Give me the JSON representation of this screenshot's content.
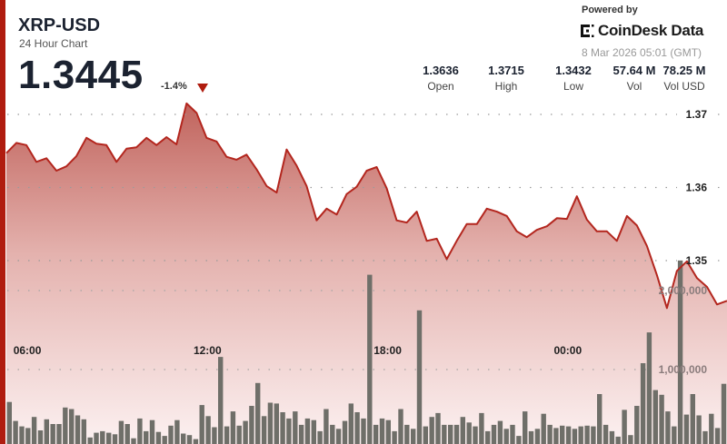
{
  "header": {
    "title": "XRP-USD",
    "subtitle": "24 Hour Chart",
    "price": "1.3445",
    "change": "-1.4%",
    "change_direction": "down",
    "powered_by": "Powered by",
    "brand": "CoinDesk Data",
    "timestamp": "8 Mar 2026 05:01 (GMT)"
  },
  "stats": [
    {
      "value": "1.3636",
      "label": "Open"
    },
    {
      "value": "1.3715",
      "label": "High"
    },
    {
      "value": "1.3432",
      "label": "Low"
    },
    {
      "value": "57.64 M",
      "label": "Vol"
    },
    {
      "value": "78.25 M",
      "label": "Vol USD"
    }
  ],
  "colors": {
    "accent": "#b01c0f",
    "line": "#b3261e",
    "volume_bar": "#6f6f69"
  },
  "chart_data": {
    "type": "area",
    "grid": true,
    "price_ticks": [
      1.37,
      1.36,
      1.35
    ],
    "price_tick_labels": [
      "1.37",
      "1.36",
      "1.35"
    ],
    "price_range": [
      1.3432,
      1.3715
    ],
    "volume_ticks": [
      2000000,
      1000000
    ],
    "volume_tick_labels": [
      "2,000,000",
      "1,000,000"
    ],
    "x_ticks": [
      "06:00",
      "12:00",
      "18:00",
      "00:00"
    ],
    "x_range": [
      "05:00",
      "05:00"
    ],
    "price_series": [
      [
        "05:00",
        1.3647
      ],
      [
        "05:20",
        1.3661
      ],
      [
        "05:40",
        1.3658
      ],
      [
        "06:00",
        1.3635
      ],
      [
        "06:20",
        1.364
      ],
      [
        "06:40",
        1.3623
      ],
      [
        "07:00",
        1.3629
      ],
      [
        "07:20",
        1.3643
      ],
      [
        "07:40",
        1.3668
      ],
      [
        "08:00",
        1.366
      ],
      [
        "08:20",
        1.3658
      ],
      [
        "08:40",
        1.3635
      ],
      [
        "09:00",
        1.3653
      ],
      [
        "09:20",
        1.3655
      ],
      [
        "09:40",
        1.3668
      ],
      [
        "10:00",
        1.3658
      ],
      [
        "10:20",
        1.3669
      ],
      [
        "10:40",
        1.3659
      ],
      [
        "11:00",
        1.3715
      ],
      [
        "11:20",
        1.3702
      ],
      [
        "11:40",
        1.3668
      ],
      [
        "12:00",
        1.3663
      ],
      [
        "12:20",
        1.3642
      ],
      [
        "12:40",
        1.3638
      ],
      [
        "13:00",
        1.3645
      ],
      [
        "13:20",
        1.3625
      ],
      [
        "13:40",
        1.3602
      ],
      [
        "14:00",
        1.3593
      ],
      [
        "14:20",
        1.3652
      ],
      [
        "14:40",
        1.363
      ],
      [
        "15:00",
        1.3602
      ],
      [
        "15:20",
        1.3555
      ],
      [
        "15:40",
        1.3571
      ],
      [
        "16:00",
        1.3563
      ],
      [
        "16:20",
        1.3591
      ],
      [
        "16:40",
        1.3601
      ],
      [
        "17:00",
        1.3623
      ],
      [
        "17:20",
        1.3628
      ],
      [
        "17:40",
        1.3599
      ],
      [
        "18:00",
        1.3555
      ],
      [
        "18:20",
        1.3552
      ],
      [
        "18:40",
        1.3567
      ],
      [
        "19:00",
        1.3527
      ],
      [
        "19:20",
        1.353
      ],
      [
        "19:40",
        1.3502
      ],
      [
        "20:00",
        1.3527
      ],
      [
        "20:20",
        1.355
      ],
      [
        "20:40",
        1.355
      ],
      [
        "21:00",
        1.3571
      ],
      [
        "21:20",
        1.3567
      ],
      [
        "21:40",
        1.3561
      ],
      [
        "22:00",
        1.354
      ],
      [
        "22:20",
        1.3532
      ],
      [
        "22:40",
        1.3542
      ],
      [
        "23:00",
        1.3547
      ],
      [
        "23:20",
        1.3558
      ],
      [
        "23:40",
        1.3557
      ],
      [
        "00:00",
        1.3588
      ],
      [
        "00:20",
        1.3556
      ],
      [
        "00:40",
        1.354
      ],
      [
        "01:00",
        1.354
      ],
      [
        "01:20",
        1.3527
      ],
      [
        "01:40",
        1.3561
      ],
      [
        "02:00",
        1.3548
      ],
      [
        "02:20",
        1.352
      ],
      [
        "02:40",
        1.348
      ],
      [
        "03:00",
        1.3435
      ],
      [
        "03:20",
        1.3486
      ],
      [
        "03:40",
        1.3499
      ],
      [
        "04:00",
        1.3476
      ],
      [
        "04:20",
        1.3464
      ],
      [
        "04:40",
        1.344
      ],
      [
        "05:00",
        1.3445
      ]
    ],
    "volume_series": [
      590000,
      350000,
      280000,
      260000,
      400000,
      230000,
      370000,
      310000,
      310000,
      520000,
      500000,
      420000,
      370000,
      140000,
      200000,
      220000,
      200000,
      180000,
      350000,
      310000,
      130000,
      380000,
      220000,
      360000,
      210000,
      160000,
      290000,
      360000,
      190000,
      170000,
      120000,
      550000,
      410000,
      270000,
      1160000,
      280000,
      470000,
      290000,
      350000,
      540000,
      830000,
      410000,
      580000,
      570000,
      460000,
      380000,
      470000,
      300000,
      380000,
      360000,
      220000,
      500000,
      300000,
      250000,
      350000,
      570000,
      460000,
      380000,
      2200000,
      300000,
      380000,
      360000,
      220000,
      500000,
      300000,
      250000,
      1750000,
      280000,
      400000,
      450000,
      300000,
      300000,
      300000,
      400000,
      330000,
      280000,
      450000,
      220000,
      300000,
      350000,
      250000,
      300000,
      160000,
      470000,
      220000,
      250000,
      440000,
      300000,
      260000,
      290000,
      280000,
      250000,
      280000,
      290000,
      280000,
      690000,
      300000,
      220000,
      150000,
      490000,
      170000,
      540000,
      1080000,
      1470000,
      740000,
      680000,
      470000,
      280000,
      2380000,
      430000,
      690000,
      420000,
      220000,
      440000,
      260000,
      820000
    ]
  }
}
